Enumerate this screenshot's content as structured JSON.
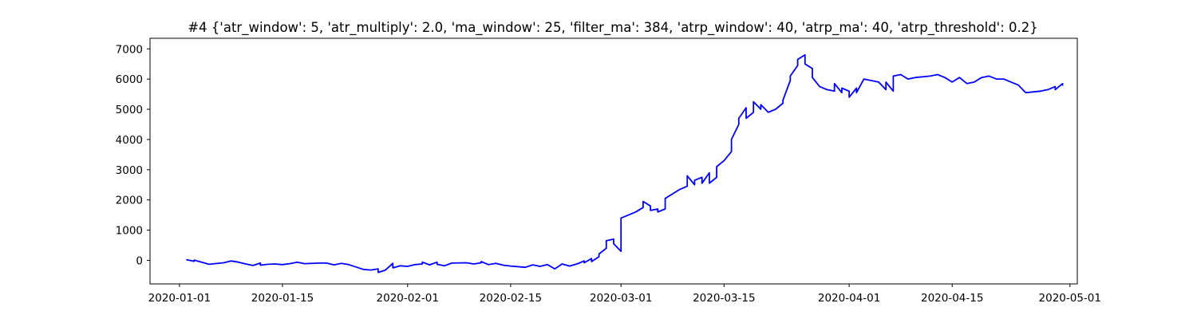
{
  "chart_data": {
    "type": "line",
    "title": "#4 {'atr_window': 5, 'atr_multiply': 2.0, 'ma_window': 25, 'filter_ma': 384, 'atrp_window': 40, 'atrp_ma': 40, 'atrp_threshold': 0.2}",
    "xlabel": "",
    "ylabel": "",
    "x_axis_type": "date",
    "xlim": [
      "2019-12-28",
      "2020-05-02"
    ],
    "ylim": [
      -780,
      7350
    ],
    "x_ticks": [
      "2020-01-01",
      "2020-01-15",
      "2020-02-01",
      "2020-02-15",
      "2020-03-01",
      "2020-03-15",
      "2020-04-01",
      "2020-04-15",
      "2020-05-01"
    ],
    "y_ticks": [
      0,
      1000,
      2000,
      3000,
      4000,
      5000,
      6000,
      7000
    ],
    "grid": false,
    "legend": "none",
    "series": [
      {
        "color": "#0000ff",
        "points": [
          [
            "2020-01-02",
            20
          ],
          [
            "2020-01-03",
            -30
          ],
          [
            "2020-01-03",
            10
          ],
          [
            "2020-01-04",
            -60
          ],
          [
            "2020-01-05",
            -130
          ],
          [
            "2020-01-07",
            -80
          ],
          [
            "2020-01-08",
            -20
          ],
          [
            "2020-01-09",
            -60
          ],
          [
            "2020-01-10",
            -120
          ],
          [
            "2020-01-11",
            -170
          ],
          [
            "2020-01-12",
            -90
          ],
          [
            "2020-01-12",
            -160
          ],
          [
            "2020-01-13",
            -130
          ],
          [
            "2020-01-14",
            -120
          ],
          [
            "2020-01-15",
            -140
          ],
          [
            "2020-01-16",
            -110
          ],
          [
            "2020-01-17",
            -60
          ],
          [
            "2020-01-18",
            -110
          ],
          [
            "2020-01-20",
            -90
          ],
          [
            "2020-01-21",
            -90
          ],
          [
            "2020-01-22",
            -150
          ],
          [
            "2020-01-23",
            -100
          ],
          [
            "2020-01-24",
            -140
          ],
          [
            "2020-01-25",
            -220
          ],
          [
            "2020-01-26",
            -300
          ],
          [
            "2020-01-27",
            -320
          ],
          [
            "2020-01-28",
            -280
          ],
          [
            "2020-01-28",
            -400
          ],
          [
            "2020-01-29",
            -320
          ],
          [
            "2020-01-30",
            -100
          ],
          [
            "2020-01-30",
            -250
          ],
          [
            "2020-01-31",
            -180
          ],
          [
            "2020-02-01",
            -200
          ],
          [
            "2020-02-02",
            -140
          ],
          [
            "2020-02-03",
            -120
          ],
          [
            "2020-02-03",
            -60
          ],
          [
            "2020-02-04",
            -150
          ],
          [
            "2020-02-05",
            -60
          ],
          [
            "2020-02-05",
            -130
          ],
          [
            "2020-02-06",
            -180
          ],
          [
            "2020-02-07",
            -90
          ],
          [
            "2020-02-09",
            -80
          ],
          [
            "2020-02-10",
            -120
          ],
          [
            "2020-02-11",
            -80
          ],
          [
            "2020-02-11",
            -40
          ],
          [
            "2020-02-12",
            -140
          ],
          [
            "2020-02-13",
            -100
          ],
          [
            "2020-02-14",
            -160
          ],
          [
            "2020-02-15",
            -190
          ],
          [
            "2020-02-17",
            -230
          ],
          [
            "2020-02-18",
            -150
          ],
          [
            "2020-02-19",
            -200
          ],
          [
            "2020-02-20",
            -140
          ],
          [
            "2020-02-21",
            -280
          ],
          [
            "2020-02-22",
            -120
          ],
          [
            "2020-02-23",
            -190
          ],
          [
            "2020-02-24",
            -120
          ],
          [
            "2020-02-25",
            -20
          ],
          [
            "2020-02-25",
            -80
          ],
          [
            "2020-02-26",
            60
          ],
          [
            "2020-02-26",
            -40
          ],
          [
            "2020-02-27",
            120
          ],
          [
            "2020-02-27",
            210
          ],
          [
            "2020-02-28",
            400
          ],
          [
            "2020-02-28",
            650
          ],
          [
            "2020-02-29",
            700
          ],
          [
            "2020-02-29",
            550
          ],
          [
            "2020-03-01",
            300
          ],
          [
            "2020-03-01",
            1400
          ],
          [
            "2020-03-03",
            1600
          ],
          [
            "2020-03-04",
            1750
          ],
          [
            "2020-03-04",
            1950
          ],
          [
            "2020-03-05",
            1800
          ],
          [
            "2020-03-05",
            1650
          ],
          [
            "2020-03-06",
            1700
          ],
          [
            "2020-03-06",
            1600
          ],
          [
            "2020-03-07",
            1700
          ],
          [
            "2020-03-07",
            2050
          ],
          [
            "2020-03-08",
            2200
          ],
          [
            "2020-03-09",
            2350
          ],
          [
            "2020-03-10",
            2450
          ],
          [
            "2020-03-10",
            2800
          ],
          [
            "2020-03-11",
            2500
          ],
          [
            "2020-03-11",
            2650
          ],
          [
            "2020-03-12",
            2750
          ],
          [
            "2020-03-12",
            2550
          ],
          [
            "2020-03-13",
            2900
          ],
          [
            "2020-03-13",
            2550
          ],
          [
            "2020-03-14",
            2750
          ],
          [
            "2020-03-14",
            3100
          ],
          [
            "2020-03-15",
            3300
          ],
          [
            "2020-03-16",
            3600
          ],
          [
            "2020-03-16",
            4000
          ],
          [
            "2020-03-17",
            4500
          ],
          [
            "2020-03-17",
            4700
          ],
          [
            "2020-03-18",
            5050
          ],
          [
            "2020-03-18",
            4700
          ],
          [
            "2020-03-19",
            4900
          ],
          [
            "2020-03-19",
            5250
          ],
          [
            "2020-03-20",
            5000
          ],
          [
            "2020-03-20",
            5150
          ],
          [
            "2020-03-21",
            4900
          ],
          [
            "2020-03-22",
            5000
          ],
          [
            "2020-03-23",
            5200
          ],
          [
            "2020-03-23",
            5300
          ],
          [
            "2020-03-24",
            5950
          ],
          [
            "2020-03-24",
            6100
          ],
          [
            "2020-03-25",
            6450
          ],
          [
            "2020-03-25",
            6650
          ],
          [
            "2020-03-26",
            6800
          ],
          [
            "2020-03-26",
            6500
          ],
          [
            "2020-03-27",
            6350
          ],
          [
            "2020-03-27",
            6050
          ],
          [
            "2020-03-28",
            5750
          ],
          [
            "2020-03-29",
            5650
          ],
          [
            "2020-03-30",
            5600
          ],
          [
            "2020-03-30",
            5850
          ],
          [
            "2020-03-31",
            5550
          ],
          [
            "2020-03-31",
            5700
          ],
          [
            "2020-04-01",
            5600
          ],
          [
            "2020-04-01",
            5400
          ],
          [
            "2020-04-02",
            5700
          ],
          [
            "2020-04-02",
            5550
          ],
          [
            "2020-04-03",
            6000
          ],
          [
            "2020-04-04",
            5950
          ],
          [
            "2020-04-05",
            5900
          ],
          [
            "2020-04-06",
            5650
          ],
          [
            "2020-04-06",
            5900
          ],
          [
            "2020-04-07",
            5600
          ],
          [
            "2020-04-07",
            6100
          ],
          [
            "2020-04-08",
            6150
          ],
          [
            "2020-04-09",
            6000
          ],
          [
            "2020-04-10",
            6050
          ],
          [
            "2020-04-12",
            6100
          ],
          [
            "2020-04-13",
            6150
          ],
          [
            "2020-04-14",
            6050
          ],
          [
            "2020-04-15",
            5900
          ],
          [
            "2020-04-16",
            6050
          ],
          [
            "2020-04-17",
            5850
          ],
          [
            "2020-04-18",
            5900
          ],
          [
            "2020-04-19",
            6050
          ],
          [
            "2020-04-20",
            6100
          ],
          [
            "2020-04-21",
            6000
          ],
          [
            "2020-04-22",
            6000
          ],
          [
            "2020-04-23",
            5900
          ],
          [
            "2020-04-24",
            5800
          ],
          [
            "2020-04-25",
            5550
          ],
          [
            "2020-04-27",
            5600
          ],
          [
            "2020-04-28",
            5650
          ],
          [
            "2020-04-29",
            5750
          ],
          [
            "2020-04-29",
            5650
          ],
          [
            "2020-04-30",
            5850
          ],
          [
            "2020-04-30",
            5800
          ]
        ]
      }
    ]
  }
}
